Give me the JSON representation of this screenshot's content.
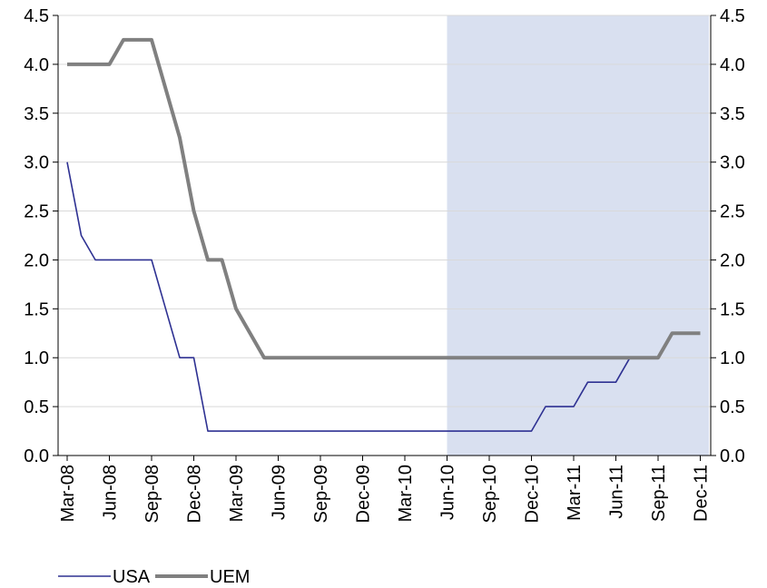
{
  "chart_data": {
    "type": "line",
    "title": "",
    "xlabel": "",
    "ylabel": "",
    "x_tick_labels": [
      "Mar-08",
      "Jun-08",
      "Sep-08",
      "Dec-08",
      "Mar-09",
      "Jun-09",
      "Sep-09",
      "Dec-09",
      "Mar-10",
      "Jun-10",
      "Sep-10",
      "Dec-10",
      "Mar-11",
      "Jun-11",
      "Sep-11",
      "Dec-11"
    ],
    "x_range": [
      "2008-03",
      "2011-12"
    ],
    "ylim": [
      0,
      4.5
    ],
    "y_ticks": [
      "0.0",
      "0.5",
      "1.0",
      "1.5",
      "2.0",
      "2.5",
      "3.0",
      "3.5",
      "4.0",
      "4.5"
    ],
    "secondary_y_ticks": [
      "0.0",
      "0.5",
      "1.0",
      "1.5",
      "2.0",
      "2.5",
      "3.0",
      "3.5",
      "4.0",
      "4.5"
    ],
    "grid": true,
    "legend_position": "bottom-left",
    "shaded_region": {
      "from": "2010-06",
      "to": "2011-12",
      "color": "#d9e0f0"
    },
    "series": [
      {
        "name": "USA",
        "color": "#2e3192",
        "points": [
          [
            "2008-03",
            3.0
          ],
          [
            "2008-04",
            2.25
          ],
          [
            "2008-05",
            2.0
          ],
          [
            "2008-06",
            2.0
          ],
          [
            "2008-07",
            2.0
          ],
          [
            "2008-08",
            2.0
          ],
          [
            "2008-09",
            2.0
          ],
          [
            "2008-10",
            1.5
          ],
          [
            "2008-11",
            1.0
          ],
          [
            "2008-12",
            1.0
          ],
          [
            "2009-01",
            0.25
          ],
          [
            "2009-02",
            0.25
          ],
          [
            "2009-03",
            0.25
          ],
          [
            "2009-06",
            0.25
          ],
          [
            "2009-09",
            0.25
          ],
          [
            "2009-12",
            0.25
          ],
          [
            "2010-03",
            0.25
          ],
          [
            "2010-06",
            0.25
          ],
          [
            "2010-09",
            0.25
          ],
          [
            "2010-12",
            0.25
          ],
          [
            "2011-01",
            0.5
          ],
          [
            "2011-02",
            0.5
          ],
          [
            "2011-03",
            0.5
          ],
          [
            "2011-04",
            0.75
          ],
          [
            "2011-05",
            0.75
          ],
          [
            "2011-06",
            0.75
          ],
          [
            "2011-07",
            1.0
          ],
          [
            "2011-08",
            1.0
          ],
          [
            "2011-09",
            1.0
          ],
          [
            "2011-10",
            1.25
          ],
          [
            "2011-11",
            1.25
          ],
          [
            "2011-12",
            1.25
          ]
        ]
      },
      {
        "name": "UEM",
        "color": "#808080",
        "points": [
          [
            "2008-03",
            4.0
          ],
          [
            "2008-04",
            4.0
          ],
          [
            "2008-05",
            4.0
          ],
          [
            "2008-06",
            4.0
          ],
          [
            "2008-07",
            4.25
          ],
          [
            "2008-08",
            4.25
          ],
          [
            "2008-09",
            4.25
          ],
          [
            "2008-10",
            3.75
          ],
          [
            "2008-11",
            3.25
          ],
          [
            "2008-12",
            2.5
          ],
          [
            "2009-01",
            2.0
          ],
          [
            "2009-02",
            2.0
          ],
          [
            "2009-03",
            1.5
          ],
          [
            "2009-04",
            1.25
          ],
          [
            "2009-05",
            1.0
          ],
          [
            "2009-09",
            1.0
          ],
          [
            "2009-12",
            1.0
          ],
          [
            "2010-03",
            1.0
          ],
          [
            "2010-06",
            1.0
          ],
          [
            "2010-09",
            1.0
          ],
          [
            "2010-12",
            1.0
          ],
          [
            "2011-03",
            1.0
          ],
          [
            "2011-06",
            1.0
          ],
          [
            "2011-07",
            1.0
          ],
          [
            "2011-08",
            1.0
          ],
          [
            "2011-09",
            1.0
          ],
          [
            "2011-10",
            1.25
          ],
          [
            "2011-11",
            1.25
          ],
          [
            "2011-12",
            1.25
          ]
        ]
      }
    ]
  }
}
